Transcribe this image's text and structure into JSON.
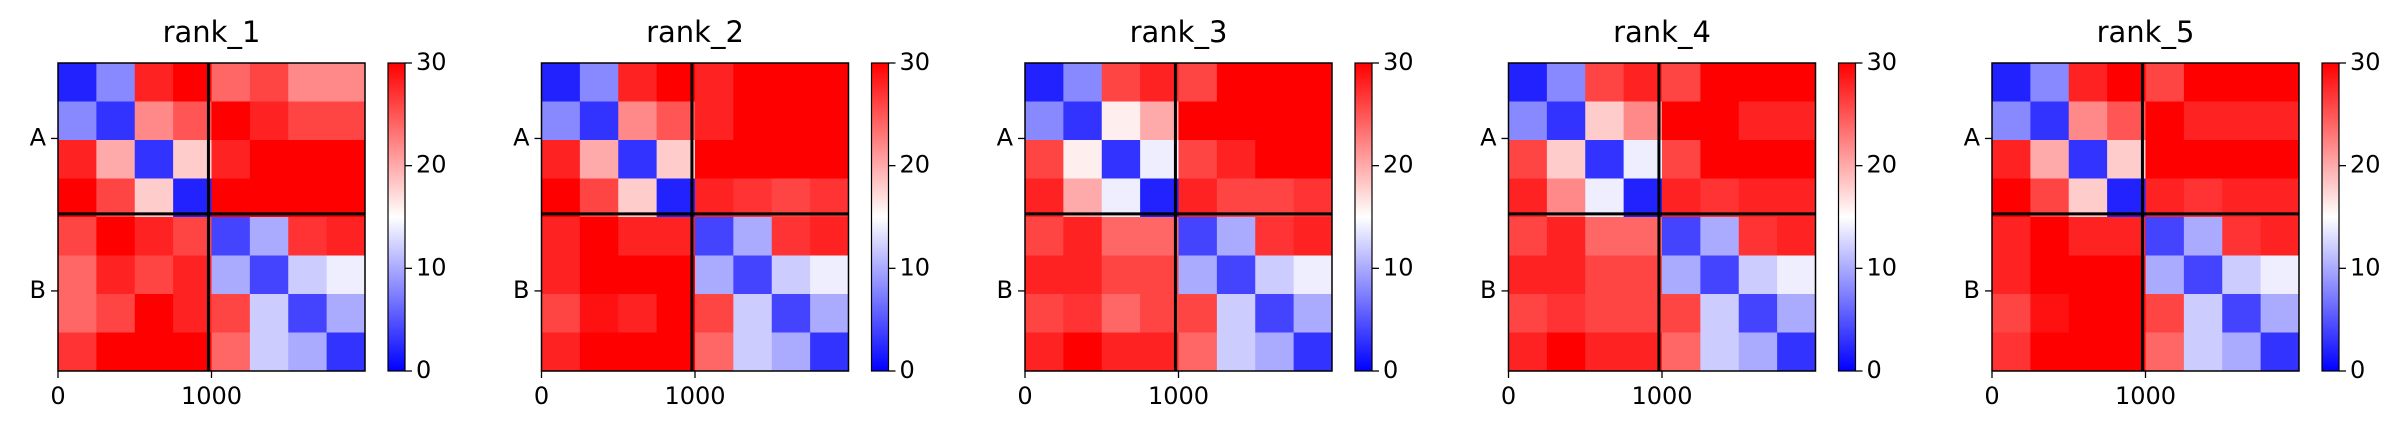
{
  "chart_data": [
    {
      "type": "heatmap",
      "title": "rank_1",
      "colormap": "bwr",
      "xlim": [
        0,
        2000
      ],
      "ylim": [
        2000,
        0
      ],
      "xticks": [
        0,
        1000
      ],
      "yticks": [
        {
          "value": 490,
          "label": "A"
        },
        {
          "value": 1480,
          "label": "B"
        }
      ],
      "chain_boundaries": [
        980
      ],
      "clim": [
        0,
        30
      ],
      "cticks": [
        0,
        10,
        20,
        30
      ],
      "z": [
        [
          2,
          8,
          28,
          30,
          24,
          26,
          22,
          22
        ],
        [
          8,
          3,
          22,
          25,
          30,
          28,
          26,
          26
        ],
        [
          28,
          20,
          3,
          18,
          28,
          30,
          30,
          30
        ],
        [
          30,
          26,
          18,
          2,
          30,
          30,
          30,
          30
        ],
        [
          26,
          30,
          28,
          26,
          4,
          10,
          27,
          28
        ],
        [
          24,
          28,
          26,
          28,
          10,
          4,
          12,
          14
        ],
        [
          24,
          26,
          30,
          28,
          26,
          12,
          4,
          10
        ],
        [
          27,
          30,
          30,
          30,
          24,
          12,
          10,
          3
        ]
      ]
    },
    {
      "type": "heatmap",
      "title": "rank_2",
      "colormap": "bwr",
      "xlim": [
        0,
        2000
      ],
      "ylim": [
        2000,
        0
      ],
      "xticks": [
        0,
        1000
      ],
      "yticks": [
        {
          "value": 490,
          "label": "A"
        },
        {
          "value": 1480,
          "label": "B"
        }
      ],
      "chain_boundaries": [
        980
      ],
      "clim": [
        0,
        30
      ],
      "cticks": [
        0,
        10,
        20,
        30
      ],
      "z": [
        [
          2,
          8,
          28,
          30,
          28,
          30,
          30,
          30
        ],
        [
          8,
          3,
          22,
          25,
          28,
          30,
          30,
          30
        ],
        [
          28,
          20,
          3,
          18,
          30,
          30,
          30,
          30
        ],
        [
          30,
          26,
          18,
          2,
          28,
          27,
          26,
          27
        ],
        [
          28,
          30,
          28,
          28,
          4,
          10,
          27,
          28
        ],
        [
          28,
          30,
          30,
          30,
          10,
          4,
          12,
          14
        ],
        [
          26,
          29,
          28,
          30,
          26,
          12,
          4,
          10
        ],
        [
          28,
          30,
          30,
          30,
          24,
          12,
          10,
          3
        ]
      ]
    },
    {
      "type": "heatmap",
      "title": "rank_3",
      "colormap": "bwr",
      "xlim": [
        0,
        2000
      ],
      "ylim": [
        2000,
        0
      ],
      "xticks": [
        0,
        1000
      ],
      "yticks": [
        {
          "value": 490,
          "label": "A"
        },
        {
          "value": 1480,
          "label": "B"
        }
      ],
      "chain_boundaries": [
        980
      ],
      "clim": [
        0,
        30
      ],
      "cticks": [
        0,
        10,
        20,
        30
      ],
      "z": [
        [
          2,
          8,
          26,
          28,
          26,
          30,
          30,
          30
        ],
        [
          8,
          3,
          16,
          20,
          30,
          30,
          30,
          30
        ],
        [
          26,
          16,
          3,
          14,
          26,
          28,
          30,
          30
        ],
        [
          28,
          20,
          14,
          2,
          28,
          26,
          26,
          27
        ],
        [
          26,
          28,
          24,
          24,
          4,
          10,
          27,
          28
        ],
        [
          28,
          28,
          26,
          26,
          10,
          4,
          12,
          14
        ],
        [
          26,
          27,
          24,
          26,
          26,
          12,
          4,
          10
        ],
        [
          28,
          30,
          28,
          28,
          24,
          12,
          10,
          3
        ]
      ]
    },
    {
      "type": "heatmap",
      "title": "rank_4",
      "colormap": "bwr",
      "xlim": [
        0,
        2000
      ],
      "ylim": [
        2000,
        0
      ],
      "xticks": [
        0,
        1000
      ],
      "yticks": [
        {
          "value": 490,
          "label": "A"
        },
        {
          "value": 1480,
          "label": "B"
        }
      ],
      "chain_boundaries": [
        980
      ],
      "clim": [
        0,
        30
      ],
      "cticks": [
        0,
        10,
        20,
        30
      ],
      "z": [
        [
          2,
          8,
          26,
          28,
          26,
          30,
          30,
          30
        ],
        [
          8,
          3,
          18,
          22,
          30,
          30,
          28,
          28
        ],
        [
          26,
          18,
          3,
          14,
          26,
          30,
          30,
          30
        ],
        [
          28,
          22,
          14,
          2,
          28,
          27,
          28,
          28
        ],
        [
          26,
          28,
          24,
          24,
          4,
          10,
          27,
          28
        ],
        [
          28,
          28,
          26,
          26,
          10,
          4,
          12,
          14
        ],
        [
          26,
          27,
          26,
          26,
          26,
          12,
          4,
          10
        ],
        [
          28,
          30,
          28,
          28,
          24,
          12,
          10,
          3
        ]
      ]
    },
    {
      "type": "heatmap",
      "title": "rank_5",
      "colormap": "bwr",
      "xlim": [
        0,
        2000
      ],
      "ylim": [
        2000,
        0
      ],
      "xticks": [
        0,
        1000
      ],
      "yticks": [
        {
          "value": 490,
          "label": "A"
        },
        {
          "value": 1480,
          "label": "B"
        }
      ],
      "chain_boundaries": [
        980
      ],
      "clim": [
        0,
        30
      ],
      "cticks": [
        0,
        10,
        20,
        30
      ],
      "z": [
        [
          2,
          8,
          28,
          30,
          26,
          30,
          30,
          30
        ],
        [
          8,
          3,
          22,
          25,
          30,
          28,
          28,
          28
        ],
        [
          28,
          20,
          3,
          18,
          30,
          30,
          30,
          30
        ],
        [
          30,
          26,
          18,
          2,
          28,
          27,
          28,
          28
        ],
        [
          28,
          30,
          28,
          28,
          4,
          10,
          27,
          28
        ],
        [
          28,
          30,
          30,
          30,
          10,
          4,
          12,
          14
        ],
        [
          26,
          29,
          30,
          30,
          26,
          12,
          4,
          10
        ],
        [
          27,
          30,
          30,
          30,
          24,
          12,
          10,
          3
        ]
      ]
    }
  ]
}
